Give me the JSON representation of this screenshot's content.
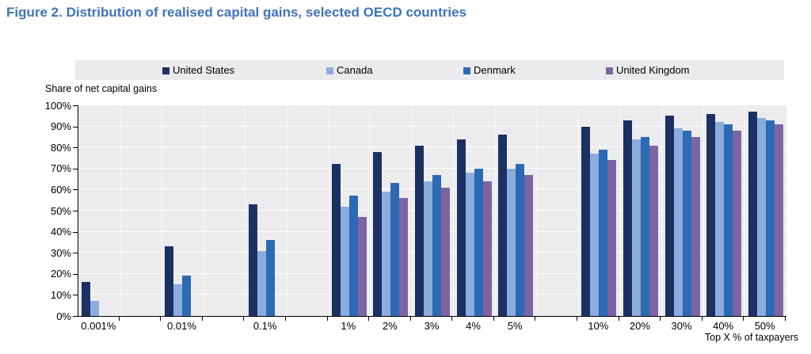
{
  "figure": {
    "title": "Figure 2. Distribution of realised capital gains, selected OECD countries",
    "title_color": "#3e73b9"
  },
  "chart_data": {
    "type": "bar",
    "title": "Figure 2. Distribution of realised capital gains, selected OECD countries",
    "ylabel": "Share of net capital gains",
    "xlabel": "Top X % of taxpayers",
    "ylim": [
      0,
      100
    ],
    "y_tick_labels": [
      "0%",
      "10%",
      "20%",
      "30%",
      "40%",
      "50%",
      "60%",
      "70%",
      "80%",
      "90%",
      "100%"
    ],
    "grid": true,
    "legend_position": "top",
    "plot_background": "#ececef",
    "legend_background": "#ebebee",
    "categories": [
      "0.001%",
      "0.01%",
      "0.1%",
      "1%",
      "2%",
      "3%",
      "4%",
      "5%",
      "10%",
      "20%",
      "30%",
      "40%",
      "50%"
    ],
    "series": [
      {
        "name": "United States",
        "color": "#1b3163",
        "values": [
          16,
          33,
          53,
          72,
          78,
          81,
          84,
          86,
          90,
          93,
          95,
          96,
          97
        ]
      },
      {
        "name": "Canada",
        "color": "#8cacdd",
        "values": [
          7,
          15,
          31,
          52,
          59,
          64,
          68,
          70,
          77,
          84,
          89,
          92,
          94
        ]
      },
      {
        "name": "Denmark",
        "color": "#2c6ab3",
        "values": [
          null,
          19,
          36,
          57,
          63,
          67,
          70,
          72,
          79,
          85,
          88,
          91,
          93
        ]
      },
      {
        "name": "United Kingdom",
        "color": "#7e64a4",
        "values": [
          null,
          null,
          null,
          47,
          56,
          61,
          64,
          67,
          74,
          81,
          85,
          88,
          91
        ]
      }
    ]
  }
}
